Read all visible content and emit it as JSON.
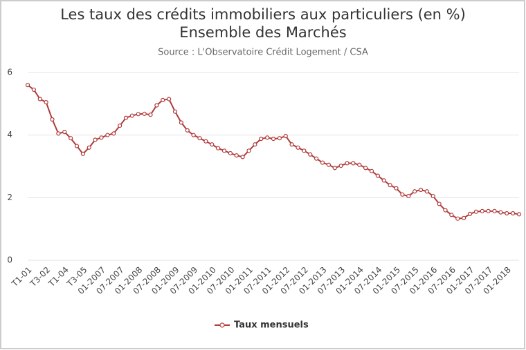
{
  "chart_data": {
    "type": "line",
    "title": [
      "Les taux des crédits immobiliers aux particuliers (en %)",
      "Ensemble des Marchés"
    ],
    "subtitle": "Source : L'Observatoire Crédit Logement / CSA",
    "categories": [
      "T1-01",
      null,
      null,
      "T3-02",
      null,
      null,
      "T1-04",
      null,
      null,
      "T3-05",
      null,
      null,
      "01-2007",
      null,
      null,
      "07-2007",
      null,
      null,
      "01-2008",
      null,
      null,
      "07-2008",
      null,
      null,
      "01-2009",
      null,
      null,
      "07-2009",
      null,
      null,
      "01-2010",
      null,
      null,
      "07-2010",
      null,
      null,
      "01-2011",
      null,
      null,
      "07-2011",
      null,
      null,
      "01-2012",
      null,
      null,
      "07-2012",
      null,
      null,
      "01-2013",
      null,
      null,
      "07-2013",
      null,
      null,
      "01-2014",
      null,
      null,
      "07-2014",
      null,
      null,
      "01-2015",
      null,
      null,
      "07-2015",
      null,
      null,
      "01-2016",
      null,
      null,
      "07-2016",
      null,
      null,
      "01-2017",
      null,
      null,
      "07-2017",
      null,
      null,
      "01-2018",
      null,
      null
    ],
    "series": [
      {
        "name": "Taux mensuels",
        "color": "#b03a3a",
        "values": [
          5.6,
          5.45,
          5.15,
          5.05,
          4.5,
          4.05,
          4.1,
          3.9,
          3.65,
          3.4,
          3.6,
          3.85,
          3.92,
          4.0,
          4.05,
          4.3,
          4.55,
          4.62,
          4.67,
          4.68,
          4.65,
          4.95,
          5.12,
          5.15,
          4.75,
          4.4,
          4.15,
          4.0,
          3.9,
          3.8,
          3.7,
          3.58,
          3.5,
          3.42,
          3.35,
          3.3,
          3.5,
          3.7,
          3.88,
          3.92,
          3.88,
          3.9,
          3.97,
          3.7,
          3.6,
          3.5,
          3.38,
          3.25,
          3.12,
          3.05,
          2.95,
          3.02,
          3.1,
          3.1,
          3.05,
          2.95,
          2.85,
          2.7,
          2.55,
          2.4,
          2.3,
          2.1,
          2.05,
          2.2,
          2.25,
          2.2,
          2.05,
          1.8,
          1.6,
          1.45,
          1.33,
          1.35,
          1.48,
          1.55,
          1.57,
          1.57,
          1.57,
          1.53,
          1.5,
          1.5,
          1.47
        ]
      }
    ],
    "ylim": [
      0,
      6
    ],
    "yticks": [
      0,
      2,
      4,
      6
    ],
    "grid": true,
    "legend": "bottom"
  }
}
